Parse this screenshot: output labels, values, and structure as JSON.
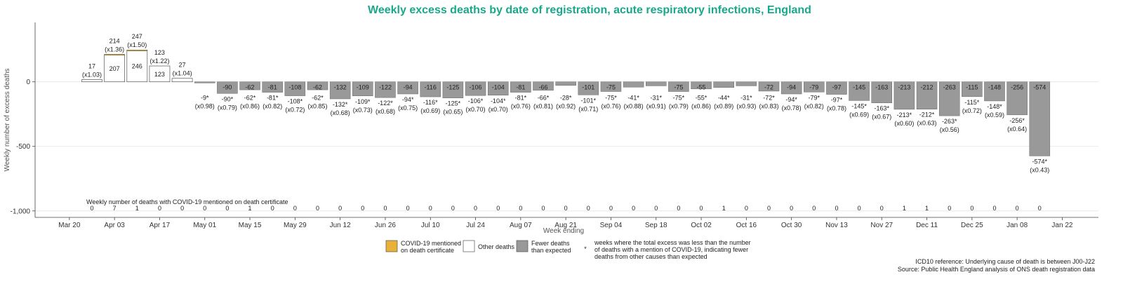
{
  "chart_data": {
    "type": "bar",
    "title": "Weekly excess deaths by date of registration, acute respiratory infections, England",
    "xlabel": "Week ending",
    "ylabel": "Weekly number of excess deaths",
    "ylim": [
      -1050,
      460
    ],
    "yticks": [
      {
        "value": 0,
        "label": "0"
      },
      {
        "value": -500,
        "label": "-500"
      },
      {
        "value": -1000,
        "label": "-1,000"
      }
    ],
    "xticks": [
      "Mar 20",
      "Apr 03",
      "Apr 17",
      "May 01",
      "May 15",
      "May 29",
      "Jun 12",
      "Jun 26",
      "Jul 10",
      "Jul 24",
      "Aug 07",
      "Aug 21",
      "Sep 04",
      "Sep 18",
      "Oct 02",
      "Oct 16",
      "Oct 30",
      "Nov 13",
      "Nov 27",
      "Dec 11",
      "Dec 25",
      "Jan 08",
      "Jan 22"
    ],
    "grid": true,
    "legend_position": "bottom",
    "colors": {
      "covid": "#e8b13a",
      "other": "#ffffff",
      "fewer": "#999999",
      "title": "#1aa88a"
    },
    "covid_row_label": "Weekly number of deaths with COVID-19 mentioned on death certificate",
    "weeks": [
      {
        "covid": 0,
        "other": 17,
        "covid_count": "0",
        "top_label": "17",
        "ratio": "(x1.03)"
      },
      {
        "covid": 7,
        "other": 207,
        "covid_count": "7",
        "top_label": "214",
        "ratio": "(x1.36)"
      },
      {
        "covid": 1,
        "other": 246,
        "covid_count": "1",
        "top_label": "247",
        "ratio": "(x1.50)"
      },
      {
        "covid": 0,
        "other": 123,
        "covid_count": "0",
        "top_label": "123",
        "ratio": "(x1.22)"
      },
      {
        "covid": 0,
        "other": 27,
        "covid_count": "0",
        "top_label": "27",
        "ratio": "(x1.04)"
      },
      {
        "fewer": -9,
        "covid_count": "0",
        "bottom_label": "-9*",
        "ratio": "(x0.98)"
      },
      {
        "fewer": -90,
        "covid_count": "0",
        "bar_label": "-90",
        "bottom_label": "-90*",
        "ratio": "(x0.79)"
      },
      {
        "fewer": -62,
        "covid_count": "1",
        "bar_label": "-62",
        "bottom_label": "-62*",
        "ratio": "(x0.86)"
      },
      {
        "fewer": -81,
        "covid_count": "0",
        "bar_label": "-81",
        "bottom_label": "-81*",
        "ratio": "(x0.82)"
      },
      {
        "fewer": -108,
        "covid_count": "0",
        "bar_label": "-108",
        "bottom_label": "-108*",
        "ratio": "(x0.72)"
      },
      {
        "fewer": -62,
        "covid_count": "0",
        "bar_label": "-62",
        "bottom_label": "-62*",
        "ratio": "(x0.85)"
      },
      {
        "fewer": -132,
        "covid_count": "0",
        "bar_label": "-132",
        "bottom_label": "-132*",
        "ratio": "(x0.68)"
      },
      {
        "fewer": -109,
        "covid_count": "0",
        "bar_label": "-109",
        "bottom_label": "-109*",
        "ratio": "(x0.73)"
      },
      {
        "fewer": -122,
        "covid_count": "0",
        "bar_label": "-122",
        "bottom_label": "-122*",
        "ratio": "(x0.68)"
      },
      {
        "fewer": -94,
        "covid_count": "0",
        "bar_label": "-94",
        "bottom_label": "-94*",
        "ratio": "(x0.75)"
      },
      {
        "fewer": -116,
        "covid_count": "0",
        "bar_label": "-116",
        "bottom_label": "-116*",
        "ratio": "(x0.69)"
      },
      {
        "fewer": -125,
        "covid_count": "0",
        "bar_label": "-125",
        "bottom_label": "-125*",
        "ratio": "(x0.65)"
      },
      {
        "fewer": -106,
        "covid_count": "0",
        "bar_label": "-106",
        "bottom_label": "-106*",
        "ratio": "(x0.70)"
      },
      {
        "fewer": -104,
        "covid_count": "0",
        "bar_label": "-104",
        "bottom_label": "-104*",
        "ratio": "(x0.70)"
      },
      {
        "fewer": -81,
        "covid_count": "0",
        "bar_label": "-81",
        "bottom_label": "-81*",
        "ratio": "(x0.76)"
      },
      {
        "fewer": -66,
        "covid_count": "0",
        "bar_label": "-66",
        "bottom_label": "-66*",
        "ratio": "(x0.81)"
      },
      {
        "fewer": -28,
        "covid_count": "0",
        "bottom_label": "-28*",
        "ratio": "(x0.92)"
      },
      {
        "fewer": -101,
        "covid_count": "0",
        "bar_label": "-101",
        "bottom_label": "-101*",
        "ratio": "(x0.71)"
      },
      {
        "fewer": -75,
        "covid_count": "0",
        "bar_label": "-75",
        "bottom_label": "-75*",
        "ratio": "(x0.76)"
      },
      {
        "fewer": -41,
        "covid_count": "0",
        "bottom_label": "-41*",
        "ratio": "(x0.88)"
      },
      {
        "fewer": -31,
        "covid_count": "0",
        "bottom_label": "-31*",
        "ratio": "(x0.91)"
      },
      {
        "fewer": -75,
        "covid_count": "0",
        "bar_label": "-75",
        "bottom_label": "-75*",
        "ratio": "(x0.79)"
      },
      {
        "fewer": -55,
        "covid_count": "0",
        "bar_label": "-55",
        "bottom_label": "-55*",
        "ratio": "(x0.86)"
      },
      {
        "fewer": -44,
        "covid_count": "1",
        "bottom_label": "-44*",
        "ratio": "(x0.89)"
      },
      {
        "fewer": -31,
        "covid_count": "0",
        "bottom_label": "-31*",
        "ratio": "(x0.93)"
      },
      {
        "fewer": -72,
        "covid_count": "0",
        "bar_label": "-72",
        "bottom_label": "-72*",
        "ratio": "(x0.83)"
      },
      {
        "fewer": -94,
        "covid_count": "0",
        "bar_label": "-94",
        "bottom_label": "-94*",
        "ratio": "(x0.78)"
      },
      {
        "fewer": -79,
        "covid_count": "0",
        "bar_label": "-79",
        "bottom_label": "-79*",
        "ratio": "(x0.82)"
      },
      {
        "fewer": -97,
        "covid_count": "0",
        "bar_label": "-97",
        "bottom_label": "-97*",
        "ratio": "(x0.78)"
      },
      {
        "fewer": -145,
        "covid_count": "0",
        "bar_label": "-145",
        "bottom_label": "-145*",
        "ratio": "(x0.69)"
      },
      {
        "fewer": -163,
        "covid_count": "0",
        "bar_label": "-163",
        "bottom_label": "-163*",
        "ratio": "(x0.67)"
      },
      {
        "fewer": -213,
        "covid_count": "1",
        "bar_label": "-213",
        "bottom_label": "-213*",
        "ratio": "(x0.60)"
      },
      {
        "fewer": -212,
        "covid_count": "1",
        "bar_label": "-212",
        "bottom_label": "-212*",
        "ratio": "(x0.63)"
      },
      {
        "fewer": -263,
        "covid_count": "0",
        "bar_label": "-263",
        "bottom_label": "-263*",
        "ratio": "(x0.56)"
      },
      {
        "fewer": -115,
        "covid_count": "0",
        "bar_label": "-115",
        "bottom_label": "-115*",
        "ratio": "(x0.72)"
      },
      {
        "fewer": -148,
        "covid_count": "0",
        "bar_label": "-148",
        "bottom_label": "-148*",
        "ratio": "(x0.59)"
      },
      {
        "fewer": -256,
        "covid_count": "0",
        "bar_label": "-256",
        "bottom_label": "-256*",
        "ratio": "(x0.64)"
      },
      {
        "fewer": -574,
        "covid_count": "0",
        "bar_label": "-574",
        "bottom_label": "-574*",
        "ratio": "(x0.43)"
      }
    ],
    "legend": [
      {
        "key": "covid",
        "label_lines": [
          "COVID-19 mentioned",
          "on death certificate"
        ]
      },
      {
        "key": "other",
        "label_lines": [
          "Other deaths"
        ]
      },
      {
        "key": "fewer",
        "label_lines": [
          "Fewer deaths",
          "than expected"
        ]
      },
      {
        "key": "asterisk",
        "symbol": "*",
        "label_lines": [
          "weeks where the total excess was less than the number",
          "of deaths with a mention of COVID-19, indicating fewer",
          "deaths from other causes than expected"
        ]
      }
    ],
    "footnotes": [
      "ICD10 reference: Underlying cause of death is between J00-J22",
      "Source: Public Health England analysis of ONS death registration data"
    ]
  }
}
